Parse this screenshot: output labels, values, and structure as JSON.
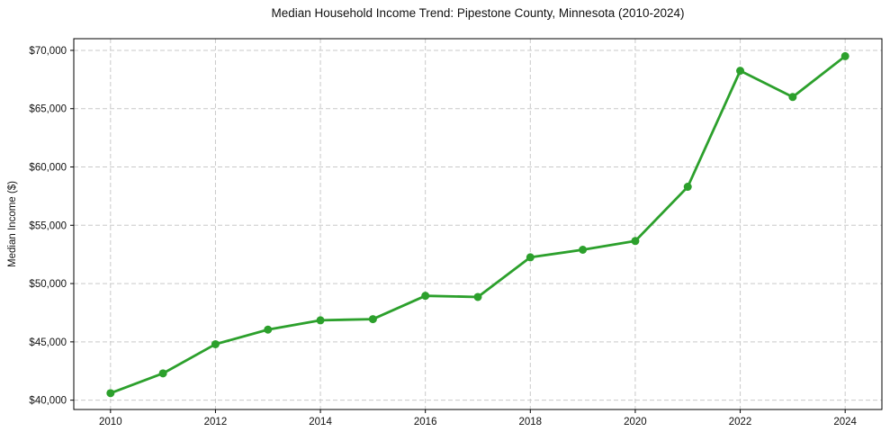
{
  "chart_data": {
    "type": "line",
    "title": "Median Household Income Trend: Pipestone County, Minnesota (2010-2024)",
    "xlabel": "",
    "ylabel": "Median Income ($)",
    "x": [
      2010,
      2011,
      2012,
      2013,
      2014,
      2015,
      2016,
      2017,
      2018,
      2019,
      2020,
      2021,
      2022,
      2023,
      2024
    ],
    "values": [
      40600,
      42300,
      44800,
      46050,
      46850,
      46950,
      48950,
      48850,
      52250,
      52900,
      53650,
      58300,
      68250,
      66000,
      69500
    ],
    "x_ticks": [
      2010,
      2012,
      2014,
      2016,
      2018,
      2020,
      2022,
      2024
    ],
    "x_tick_labels": [
      "2010",
      "2012",
      "2014",
      "2016",
      "2018",
      "2020",
      "2022",
      "2024"
    ],
    "y_ticks": [
      40000,
      45000,
      50000,
      55000,
      60000,
      65000,
      70000
    ],
    "y_tick_labels": [
      "$40,000",
      "$45,000",
      "$50,000",
      "$55,000",
      "$60,000",
      "$65,000",
      "$70,000"
    ],
    "xlim": [
      2009.3,
      2024.7
    ],
    "ylim": [
      39200,
      71000
    ],
    "grid": true,
    "legend": false,
    "marker": "o"
  },
  "colors": {
    "line": "#2ca02c",
    "marker": "#2ca02c",
    "grid": "#c9c9c9",
    "spine": "#000000",
    "text": "#111111",
    "background": "#ffffff"
  }
}
